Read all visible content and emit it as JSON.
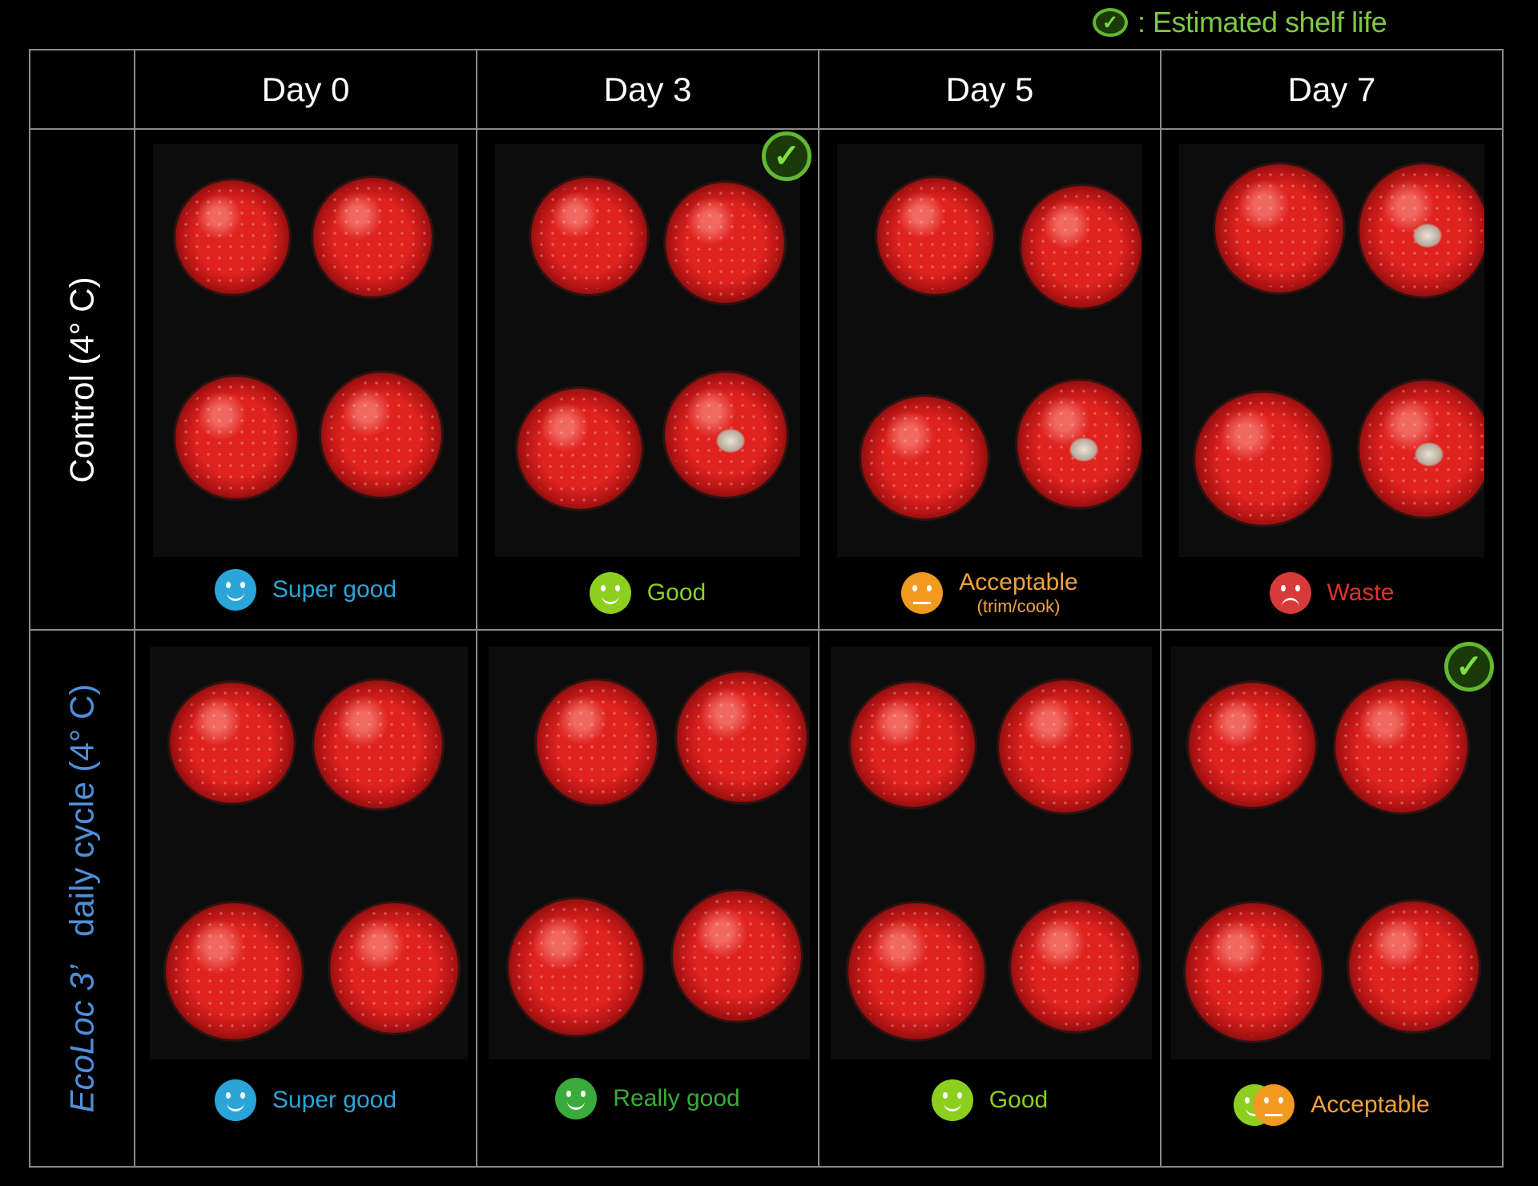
{
  "legend": {
    "text": ": Estimated shelf life",
    "icon": "check-circle-icon",
    "color": "#7fc843"
  },
  "columns": [
    "Day 0",
    "Day 3",
    "Day 5",
    "Day 7"
  ],
  "rows": [
    {
      "label": "Control (4° C)",
      "cells": [
        {
          "status": "Super good",
          "face_color": "#2ba5d8",
          "text_color": "#2ba5d8"
        },
        {
          "status": "Good",
          "face_color": "#8ccf1e",
          "text_color": "#8ccf1e",
          "shelf_life": true
        },
        {
          "status": "Acceptable",
          "sub": "(trim/cook)",
          "face_color": "#f29a20",
          "text_color": "#f2a23a"
        },
        {
          "status": "Waste",
          "face_color": "#d83a3a",
          "text_color": "#e23030"
        }
      ]
    },
    {
      "label_italic": "EcoLoc 3’",
      "label_rest": "daily cycle (4° C)",
      "cells": [
        {
          "status": "Super good",
          "face_color": "#2ba5d8",
          "text_color": "#2ba5d8"
        },
        {
          "status": "Really good",
          "face_color": "#3aab3a",
          "text_color": "#3aab3a"
        },
        {
          "status": "Good",
          "face_color": "#8ccf1e",
          "text_color": "#8ccf1e"
        },
        {
          "status": "Acceptable",
          "face_color": "#f29a20",
          "face_color_2": "#8ccf1e",
          "text_color": "#f2a23a",
          "shelf_life": true
        }
      ]
    }
  ]
}
